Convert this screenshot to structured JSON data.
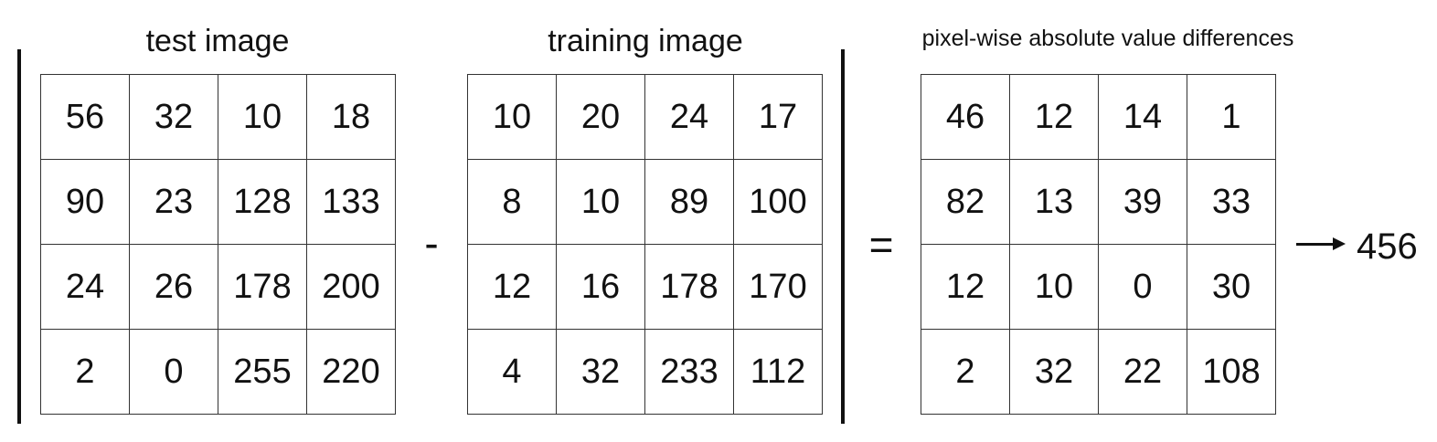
{
  "titles": {
    "test": "test image",
    "training": "training image",
    "diff": "pixel-wise absolute value differences"
  },
  "operators": {
    "minus": "-",
    "equals": "="
  },
  "test_image": [
    [
      "56",
      "32",
      "10",
      "18"
    ],
    [
      "90",
      "23",
      "128",
      "133"
    ],
    [
      "24",
      "26",
      "178",
      "200"
    ],
    [
      "2",
      "0",
      "255",
      "220"
    ]
  ],
  "training_image": [
    [
      "10",
      "20",
      "24",
      "17"
    ],
    [
      "8",
      "10",
      "89",
      "100"
    ],
    [
      "12",
      "16",
      "178",
      "170"
    ],
    [
      "4",
      "32",
      "233",
      "112"
    ]
  ],
  "difference": [
    [
      "46",
      "12",
      "14",
      "1"
    ],
    [
      "82",
      "13",
      "39",
      "33"
    ],
    [
      "12",
      "10",
      "0",
      "30"
    ],
    [
      "2",
      "32",
      "22",
      "108"
    ]
  ],
  "result": "456"
}
